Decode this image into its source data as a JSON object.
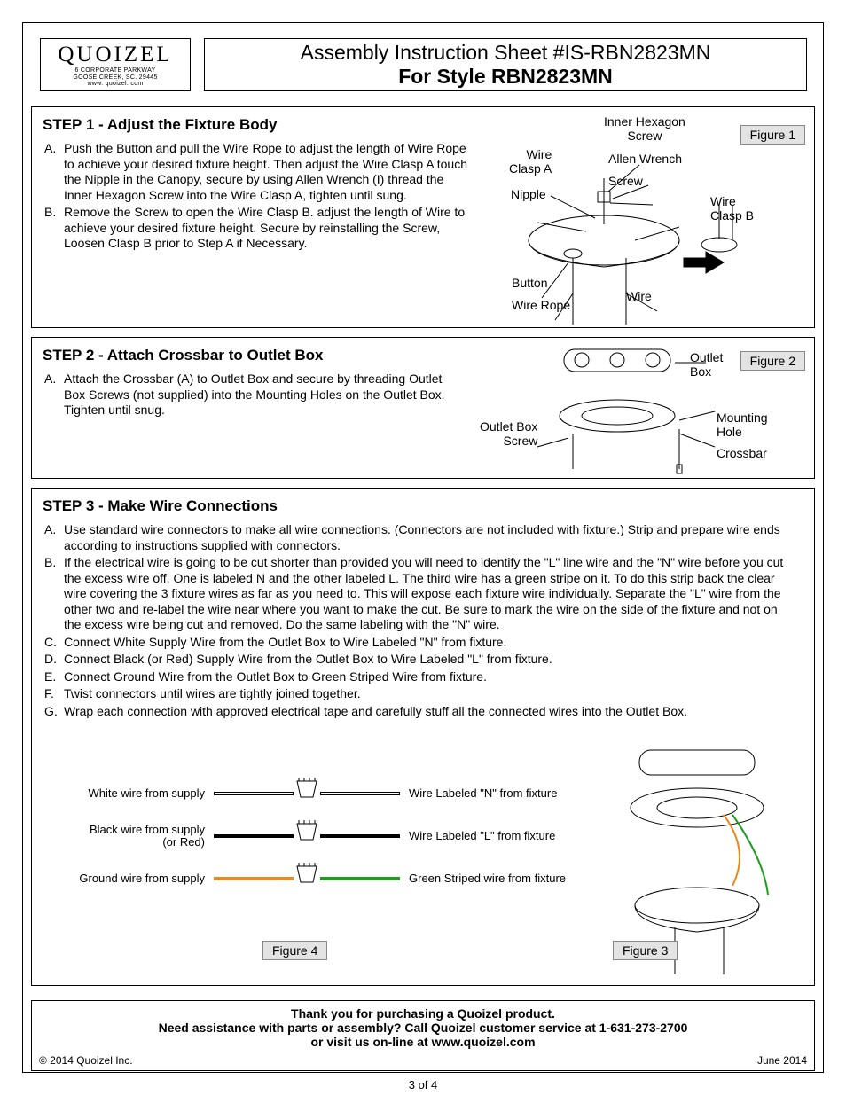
{
  "page": {
    "number": "3 of 4",
    "background": "#ffffff",
    "text_color": "#000000"
  },
  "logo": {
    "brand": "QUOIZEL",
    "addr1": "6 CORPORATE PARKWAY",
    "addr2": "GOOSE CREEK, SC. 29445",
    "site": "www. quoizel. com"
  },
  "title": {
    "line1": "Assembly Instruction Sheet #IS-RBN2823MN",
    "line2": "For Style RBN2823MN"
  },
  "step1": {
    "heading": "STEP 1 -  Adjust the Fixture Body",
    "items": [
      {
        "m": "A.",
        "t": "Push the Button and pull the Wire Rope to adjust the length of Wire Rope to achieve your desired fixture height. Then adjust the Wire Clasp A touch the Nipple in the Canopy, secure by using Allen Wrench (I) thread the Inner Hexagon Screw into the Wire Clasp A, tighten until sung."
      },
      {
        "m": "B.",
        "t": "Remove the Screw to open the Wire Clasp B. adjust the length of Wire to achieve your desired fixture height. Secure by reinstalling the Screw, Loosen Clasp B prior to Step A if Necessary."
      }
    ],
    "figure_label": "Figure 1",
    "callouts": {
      "inner_hex": "Inner Hexagon\nScrew",
      "allen": "Allen Wrench",
      "screw": "Screw",
      "claspA": "Wire\nClasp A",
      "nipple": "Nipple",
      "claspB": "Wire\nClasp B",
      "button": "Button",
      "wire_rope": "Wire Rope",
      "wire": "Wire"
    }
  },
  "step2": {
    "heading": "STEP 2 -   Attach Crossbar to Outlet Box",
    "items": [
      {
        "m": "A.",
        "t": "Attach the Crossbar (A) to Outlet Box and secure by threading Outlet Box Screws (not supplied) into the Mounting Holes on the Outlet Box. Tighten until snug."
      }
    ],
    "figure_label": "Figure 2",
    "callouts": {
      "outlet_box": "Outlet\nBox",
      "mounting": "Mounting\nHole",
      "crossbar": "Crossbar",
      "screw": "Outlet Box\nScrew"
    }
  },
  "step3": {
    "heading": "STEP 3 -   Make Wire Connections",
    "items": [
      {
        "m": "A.",
        "t": "Use standard wire connectors to make all wire connections. (Connectors are not included with fixture.) Strip and prepare wire ends according to instructions supplied with connectors."
      },
      {
        "m": "B.",
        "t": "If the electrical wire is going to be cut shorter than provided you will need to identify the \"L\" line wire and the \"N\" wire before you cut the excess wire off. One is labeled N and the other labeled L. The third wire has a green stripe on it.  To do this strip back the clear wire covering the 3 fixture wires as far as you need to. This will expose each fixture wire individually. Separate the \"L\" wire from the other two and re-label the wire near where you want to make the cut. Be sure to mark the wire on the side of the fixture and not on the excess wire being cut and removed. Do the same labeling with the \"N\" wire."
      },
      {
        "m": "C.",
        "t": "Connect White Supply Wire from the Outlet Box to  Wire Labeled \"N\" from fixture."
      },
      {
        "m": "D.",
        "t": "Connect Black (or Red) Supply Wire from the Outlet Box to  Wire Labeled \"L\" from fixture."
      },
      {
        "m": "E.",
        "t": "Connect Ground Wire from the Outlet Box to Green Striped Wire from fixture."
      },
      {
        "m": "F.",
        "t": "Twist connectors until wires are tightly joined together."
      },
      {
        "m": "G.",
        "t": "Wrap each connection with approved electrical tape and carefully stuff all the connected wires into the Outlet Box."
      }
    ],
    "figure3_label": "Figure 3",
    "figure4_label": "Figure 4",
    "wires": [
      {
        "left": "White wire from supply",
        "right": "Wire Labeled \"N\" from fixture",
        "lcolor": "#ffffff",
        "lborder": "#000000",
        "rcolor": "#ffffff",
        "rborder": "#000000"
      },
      {
        "left": "Black wire from supply\n(or Red)",
        "right": "Wire Labeled \"L\" from fixture",
        "lcolor": "#000000",
        "lborder": "#000000",
        "rcolor": "#000000",
        "rborder": "#000000"
      },
      {
        "left": "Ground wire from supply",
        "right": "Green Striped wire from fixture",
        "lcolor": "#e88b1a",
        "lborder": "#e88b1a",
        "rcolor": "#1aa01a",
        "rborder": "#1aa01a"
      }
    ]
  },
  "footer": {
    "l1": "Thank you for purchasing a Quoizel product.",
    "l2": "Need assistance with parts or assembly? Call Quoizel customer service at 1-631-273-2700",
    "l3": "or visit us on-line at www.quoizel.com",
    "copyright": "© 2014  Quoizel Inc.",
    "date": "June 2014"
  }
}
